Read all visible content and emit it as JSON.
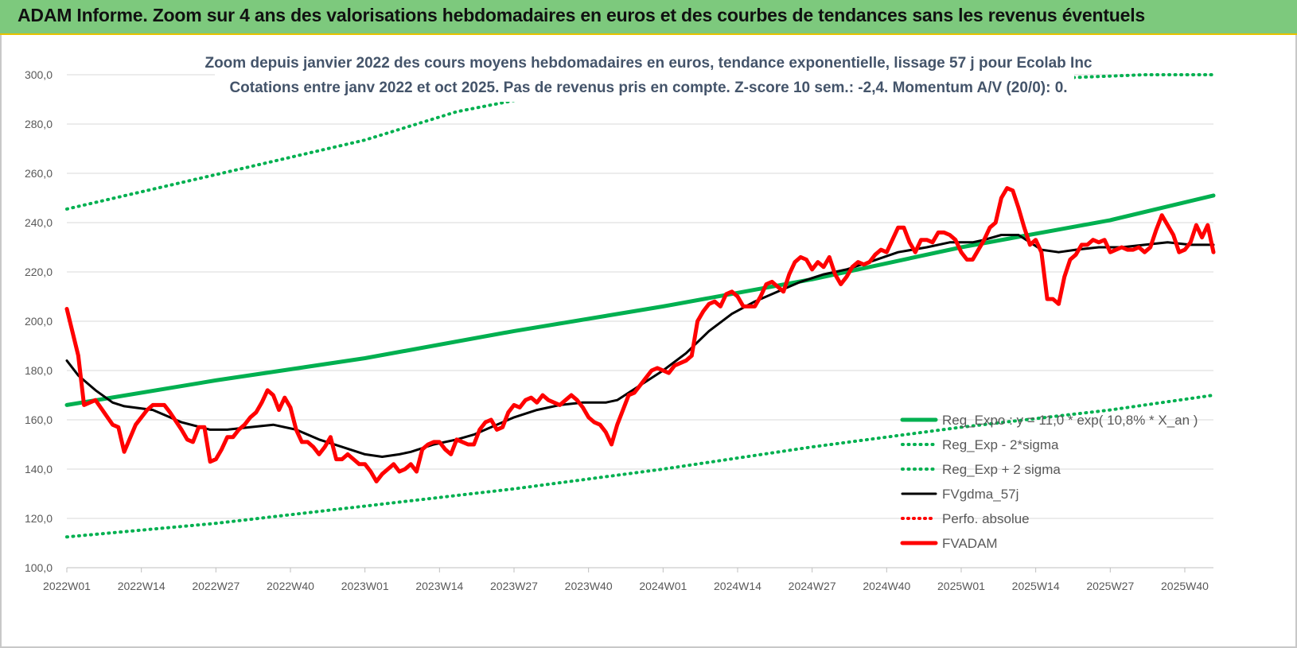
{
  "header": {
    "title": "ADAM Informe. Zoom sur 4 ans des valorisations hebdomadaires en euros et des courbes de tendances sans les revenus éventuels"
  },
  "chart_data": {
    "type": "line",
    "title_line1": "Zoom depuis janvier 2022 des cours moyens hebdomadaires en euros, tendance exponentielle, lissage 57 j pour Ecolab Inc",
    "title_line2": "Cotations entre janv 2022 et oct 2025. Pas de revenus pris en compte. Z-score 10 sem.: -2,4. Momentum A/V (20/0): 0.",
    "ylim": [
      100,
      300
    ],
    "ytick_labels": [
      "100,0",
      "120,0",
      "140,0",
      "160,0",
      "180,0",
      "200,0",
      "220,0",
      "240,0",
      "260,0",
      "280,0",
      "300,0"
    ],
    "ytick_values": [
      100,
      120,
      140,
      160,
      180,
      200,
      220,
      240,
      260,
      280,
      300
    ],
    "xlim": [
      0,
      200
    ],
    "xtick_labels": [
      "2022W01",
      "2022W14",
      "2022W27",
      "2022W40",
      "2023W01",
      "2023W14",
      "2023W27",
      "2023W40",
      "2024W01",
      "2024W14",
      "2024W27",
      "2024W40",
      "2025W01",
      "2025W14",
      "2025W27",
      "2025W40"
    ],
    "xtick_values": [
      0,
      13,
      26,
      39,
      52,
      65,
      78,
      91,
      104,
      117,
      130,
      143,
      156,
      169,
      182,
      195
    ],
    "grid": true,
    "legend_position": "bottom-right",
    "colors": {
      "reg_expo": "#00b050",
      "sigma": "#00b050",
      "fvgdma": "#000000",
      "perfo": "#ff0000",
      "fvadam": "#ff0000",
      "grid": "#d9d9d9"
    },
    "series": [
      {
        "name": "Reg_Expo : y = 11,0 * exp( 10,8% *  X_an )",
        "style": "solid-thick",
        "points": [
          [
            0,
            166
          ],
          [
            26,
            176
          ],
          [
            52,
            185
          ],
          [
            78,
            196
          ],
          [
            104,
            206
          ],
          [
            130,
            217
          ],
          [
            156,
            230
          ],
          [
            182,
            241
          ],
          [
            200,
            251
          ]
        ]
      },
      {
        "name": "Reg_Exp - 2*sigma",
        "style": "dotted",
        "points": [
          [
            0,
            112.5
          ],
          [
            26,
            118
          ],
          [
            52,
            125
          ],
          [
            78,
            132
          ],
          [
            104,
            140
          ],
          [
            130,
            149
          ],
          [
            156,
            157
          ],
          [
            182,
            164
          ],
          [
            200,
            170
          ]
        ]
      },
      {
        "name": "Reg_Exp + 2 sigma",
        "style": "dotted",
        "points": [
          [
            0,
            245.5
          ],
          [
            26,
            259.5
          ],
          [
            52,
            273.5
          ],
          [
            68,
            285
          ],
          [
            79,
            290
          ],
          [
            188,
            300
          ],
          [
            200,
            300
          ]
        ]
      },
      {
        "name": "FVgdma_57j",
        "style": "solid",
        "points": [
          [
            0,
            184
          ],
          [
            2,
            178
          ],
          [
            5,
            172
          ],
          [
            8,
            167
          ],
          [
            10,
            165.5
          ],
          [
            15,
            164
          ],
          [
            18,
            161
          ],
          [
            20,
            159
          ],
          [
            25,
            156
          ],
          [
            28,
            156
          ],
          [
            32,
            157
          ],
          [
            36,
            158
          ],
          [
            40,
            156
          ],
          [
            44,
            152
          ],
          [
            48,
            149
          ],
          [
            52,
            146
          ],
          [
            55,
            145
          ],
          [
            58,
            146
          ],
          [
            60,
            147
          ],
          [
            64,
            150
          ],
          [
            68,
            152
          ],
          [
            71,
            154
          ],
          [
            74,
            157
          ],
          [
            78,
            161
          ],
          [
            82,
            164
          ],
          [
            86,
            166
          ],
          [
            90,
            167
          ],
          [
            94,
            167
          ],
          [
            96,
            168
          ],
          [
            100,
            174
          ],
          [
            104,
            180
          ],
          [
            108,
            187
          ],
          [
            112,
            196
          ],
          [
            116,
            203
          ],
          [
            120,
            208
          ],
          [
            124,
            212
          ],
          [
            128,
            216
          ],
          [
            132,
            219
          ],
          [
            136,
            221
          ],
          [
            140,
            224
          ],
          [
            145,
            228
          ],
          [
            150,
            230
          ],
          [
            154,
            232
          ],
          [
            158,
            232
          ],
          [
            160,
            233
          ],
          [
            163,
            235
          ],
          [
            166,
            235
          ],
          [
            168,
            232
          ],
          [
            170,
            229
          ],
          [
            173,
            228
          ],
          [
            176,
            229
          ],
          [
            180,
            230
          ],
          [
            184,
            230
          ],
          [
            188,
            231
          ],
          [
            192,
            232
          ],
          [
            196,
            231
          ],
          [
            200,
            231
          ]
        ]
      },
      {
        "name": "Perfo. absolue",
        "style": "dotted",
        "points": []
      },
      {
        "name": "FVADAM",
        "style": "solid-thick",
        "points": [
          [
            0,
            205
          ],
          [
            2,
            186
          ],
          [
            3,
            166
          ],
          [
            5,
            168
          ],
          [
            8,
            158
          ],
          [
            9,
            157
          ],
          [
            10,
            147
          ],
          [
            12,
            158
          ],
          [
            14,
            164
          ],
          [
            15,
            166
          ],
          [
            17,
            166
          ],
          [
            18,
            163
          ],
          [
            20,
            156
          ],
          [
            21,
            152
          ],
          [
            22,
            151
          ],
          [
            23,
            157
          ],
          [
            24,
            157
          ],
          [
            25,
            143
          ],
          [
            26,
            144
          ],
          [
            27,
            148
          ],
          [
            28,
            153
          ],
          [
            29,
            153
          ],
          [
            30,
            156
          ],
          [
            31,
            158
          ],
          [
            32,
            161
          ],
          [
            33,
            163
          ],
          [
            34,
            167
          ],
          [
            35,
            172
          ],
          [
            36,
            170
          ],
          [
            37,
            164
          ],
          [
            38,
            169
          ],
          [
            39,
            165
          ],
          [
            40,
            156
          ],
          [
            41,
            151
          ],
          [
            42,
            151
          ],
          [
            43,
            149
          ],
          [
            44,
            146
          ],
          [
            45,
            149
          ],
          [
            46,
            153
          ],
          [
            47,
            144
          ],
          [
            48,
            144
          ],
          [
            49,
            146
          ],
          [
            50,
            144
          ],
          [
            51,
            142
          ],
          [
            52,
            142
          ],
          [
            53,
            139
          ],
          [
            54,
            135
          ],
          [
            55,
            138
          ],
          [
            56,
            140
          ],
          [
            57,
            142
          ],
          [
            58,
            139
          ],
          [
            59,
            140
          ],
          [
            60,
            142
          ],
          [
            61,
            139
          ],
          [
            62,
            148
          ],
          [
            63,
            150
          ],
          [
            64,
            151
          ],
          [
            65,
            151
          ],
          [
            66,
            148
          ],
          [
            67,
            146
          ],
          [
            68,
            152
          ],
          [
            69,
            151
          ],
          [
            70,
            150
          ],
          [
            71,
            150
          ],
          [
            72,
            156
          ],
          [
            73,
            159
          ],
          [
            74,
            160
          ],
          [
            75,
            156
          ],
          [
            76,
            157
          ],
          [
            77,
            163
          ],
          [
            78,
            166
          ],
          [
            79,
            165
          ],
          [
            80,
            168
          ],
          [
            81,
            169
          ],
          [
            82,
            167
          ],
          [
            83,
            170
          ],
          [
            84,
            168
          ],
          [
            85,
            167
          ],
          [
            86,
            166
          ],
          [
            87,
            168
          ],
          [
            88,
            170
          ],
          [
            89,
            168
          ],
          [
            90,
            165
          ],
          [
            91,
            161
          ],
          [
            92,
            159
          ],
          [
            93,
            158
          ],
          [
            94,
            155
          ],
          [
            95,
            150
          ],
          [
            96,
            158
          ],
          [
            97,
            164
          ],
          [
            98,
            170
          ],
          [
            99,
            171
          ],
          [
            100,
            174
          ],
          [
            101,
            177
          ],
          [
            102,
            180
          ],
          [
            103,
            181
          ],
          [
            104,
            180
          ],
          [
            105,
            179
          ],
          [
            106,
            182
          ],
          [
            107,
            183
          ],
          [
            108,
            184
          ],
          [
            109,
            186
          ],
          [
            110,
            200
          ],
          [
            111,
            204
          ],
          [
            112,
            207
          ],
          [
            113,
            208
          ],
          [
            114,
            206
          ],
          [
            115,
            211
          ],
          [
            116,
            212
          ],
          [
            117,
            210
          ],
          [
            118,
            206
          ],
          [
            119,
            206
          ],
          [
            120,
            206
          ],
          [
            121,
            210
          ],
          [
            122,
            215
          ],
          [
            123,
            216
          ],
          [
            124,
            214
          ],
          [
            125,
            212
          ],
          [
            126,
            219
          ],
          [
            127,
            224
          ],
          [
            128,
            226
          ],
          [
            129,
            225
          ],
          [
            130,
            221
          ],
          [
            131,
            224
          ],
          [
            132,
            222
          ],
          [
            133,
            226
          ],
          [
            134,
            219
          ],
          [
            135,
            215
          ],
          [
            136,
            218
          ],
          [
            137,
            222
          ],
          [
            138,
            224
          ],
          [
            139,
            223
          ],
          [
            140,
            224
          ],
          [
            141,
            227
          ],
          [
            142,
            229
          ],
          [
            143,
            228
          ],
          [
            144,
            233
          ],
          [
            145,
            238
          ],
          [
            146,
            238
          ],
          [
            147,
            232
          ],
          [
            148,
            228
          ],
          [
            149,
            233
          ],
          [
            150,
            233
          ],
          [
            151,
            232
          ],
          [
            152,
            236
          ],
          [
            153,
            236
          ],
          [
            154,
            235
          ],
          [
            155,
            233
          ],
          [
            156,
            228
          ],
          [
            157,
            225
          ],
          [
            158,
            225
          ],
          [
            159,
            229
          ],
          [
            160,
            233
          ],
          [
            161,
            238
          ],
          [
            162,
            240
          ],
          [
            163,
            250
          ],
          [
            164,
            254
          ],
          [
            165,
            253
          ],
          [
            166,
            246
          ],
          [
            167,
            238
          ],
          [
            168,
            231
          ],
          [
            169,
            233
          ],
          [
            170,
            228
          ],
          [
            171,
            209
          ],
          [
            172,
            209
          ],
          [
            173,
            207
          ],
          [
            174,
            218
          ],
          [
            175,
            225
          ],
          [
            176,
            227
          ],
          [
            177,
            231
          ],
          [
            178,
            231
          ],
          [
            179,
            233
          ],
          [
            180,
            232
          ],
          [
            181,
            233
          ],
          [
            182,
            228
          ],
          [
            183,
            229
          ],
          [
            184,
            230
          ],
          [
            185,
            229
          ],
          [
            186,
            229
          ],
          [
            187,
            230
          ],
          [
            188,
            228
          ],
          [
            189,
            230
          ],
          [
            190,
            237
          ],
          [
            191,
            243
          ],
          [
            192,
            239
          ],
          [
            193,
            235
          ],
          [
            194,
            228
          ],
          [
            195,
            229
          ],
          [
            196,
            232
          ],
          [
            197,
            239
          ],
          [
            198,
            234
          ],
          [
            199,
            239
          ],
          [
            200,
            228
          ]
        ]
      }
    ]
  }
}
